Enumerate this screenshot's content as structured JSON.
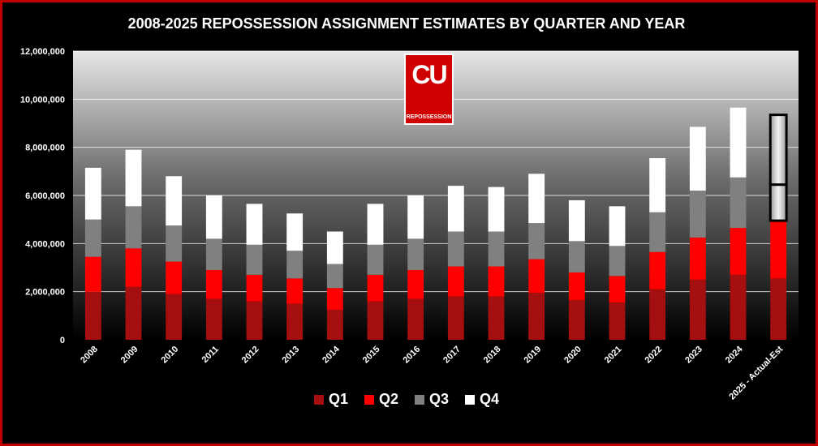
{
  "title": "2008-2025 REPOSSESSION ASSIGNMENT ESTIMATES BY QUARTER AND YEAR",
  "logo": {
    "letters": "CU",
    "text": "REPOSSESSION"
  },
  "colors": {
    "frame": "#c00000",
    "Q1": "#a50f0f",
    "Q2": "#ff0000",
    "Q3": "#808080",
    "Q4": "#ffffff"
  },
  "chart_data": {
    "type": "bar",
    "stacked": true,
    "title": "2008-2025 REPOSSESSION ASSIGNMENT ESTIMATES BY QUARTER AND YEAR",
    "categories": [
      "2008",
      "2009",
      "2010",
      "2011",
      "2012",
      "2013",
      "2014",
      "2015",
      "2016",
      "2017",
      "2018",
      "2019",
      "2020",
      "2021",
      "2022",
      "2023",
      "2024",
      "2025 - Actual-Est"
    ],
    "series": [
      {
        "name": "Q1",
        "values": [
          2000000,
          2200000,
          1900000,
          1700000,
          1600000,
          1500000,
          1250000,
          1600000,
          1700000,
          1800000,
          1800000,
          1950000,
          1650000,
          1550000,
          2100000,
          2500000,
          2700000,
          2550000
        ]
      },
      {
        "name": "Q2",
        "values": [
          1450000,
          1600000,
          1350000,
          1200000,
          1100000,
          1050000,
          900000,
          1100000,
          1200000,
          1250000,
          1250000,
          1400000,
          1150000,
          1100000,
          1550000,
          1750000,
          1950000,
          2400000
        ]
      },
      {
        "name": "Q3",
        "values": [
          1550000,
          1750000,
          1500000,
          1300000,
          1250000,
          1150000,
          1000000,
          1250000,
          1300000,
          1450000,
          1450000,
          1500000,
          1300000,
          1250000,
          1650000,
          1950000,
          2100000,
          1500000
        ]
      },
      {
        "name": "Q4",
        "values": [
          2150000,
          2350000,
          2050000,
          1800000,
          1700000,
          1550000,
          1350000,
          1700000,
          1800000,
          1900000,
          1850000,
          2050000,
          1700000,
          1650000,
          2250000,
          2650000,
          2900000,
          2900000
        ]
      }
    ],
    "estimated_segments": {
      "category": "2025 - Actual-Est",
      "series": [
        "Q3",
        "Q4"
      ]
    },
    "ylim": [
      0,
      12000000
    ],
    "yticks": [
      "0",
      "2,000,000",
      "4,000,000",
      "6,000,000",
      "8,000,000",
      "10,000,000",
      "12,000,000"
    ],
    "grid": true,
    "legend": {
      "position": "bottom",
      "entries": [
        "Q1",
        "Q2",
        "Q3",
        "Q4"
      ]
    }
  }
}
